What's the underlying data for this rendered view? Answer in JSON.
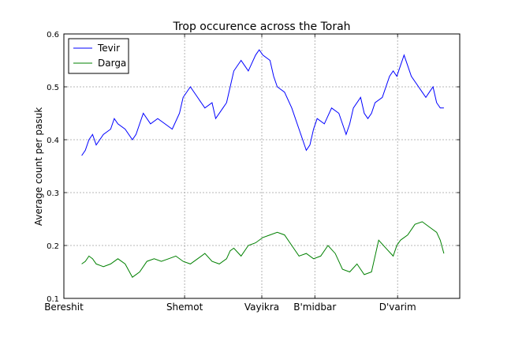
{
  "chart_data": {
    "type": "line",
    "title": "Trop occurence across the Torah",
    "xlabel": "",
    "ylabel": "Average count per pasuk",
    "ylim": [
      0.1,
      0.6
    ],
    "yticks": [
      "0.1",
      "0.2",
      "0.3",
      "0.4",
      "0.5",
      "0.6"
    ],
    "xlim": [
      0,
      1
    ],
    "xticks": [
      {
        "label": "Bereshit",
        "pos": 0.0
      },
      {
        "label": "Shemot",
        "pos": 0.305
      },
      {
        "label": "Vayikra",
        "pos": 0.5
      },
      {
        "label": "B'midbar",
        "pos": 0.634
      },
      {
        "label": "D'varim",
        "pos": 0.843
      }
    ],
    "grid": true,
    "legend_position": "top-left",
    "series": [
      {
        "name": "Tevir",
        "color": "#0000ff",
        "x": [
          0.0,
          0.01,
          0.02,
          0.03,
          0.04,
          0.06,
          0.08,
          0.09,
          0.1,
          0.12,
          0.14,
          0.15,
          0.16,
          0.17,
          0.19,
          0.21,
          0.23,
          0.25,
          0.27,
          0.28,
          0.3,
          0.32,
          0.34,
          0.36,
          0.37,
          0.39,
          0.4,
          0.41,
          0.42,
          0.44,
          0.45,
          0.46,
          0.48,
          0.49,
          0.5,
          0.52,
          0.53,
          0.54,
          0.56,
          0.58,
          0.6,
          0.61,
          0.62,
          0.63,
          0.64,
          0.65,
          0.67,
          0.69,
          0.71,
          0.72,
          0.73,
          0.74,
          0.75,
          0.77,
          0.78,
          0.79,
          0.8,
          0.81,
          0.83,
          0.85,
          0.86,
          0.87,
          0.88,
          0.89,
          0.9,
          0.91,
          0.93,
          0.94,
          0.95,
          0.96,
          0.97,
          0.98,
          0.99,
          1.0
        ],
        "y": [
          0.37,
          0.38,
          0.4,
          0.41,
          0.39,
          0.41,
          0.42,
          0.44,
          0.43,
          0.42,
          0.4,
          0.41,
          0.43,
          0.45,
          0.43,
          0.44,
          0.43,
          0.42,
          0.45,
          0.48,
          0.5,
          0.48,
          0.46,
          0.47,
          0.44,
          0.46,
          0.47,
          0.5,
          0.53,
          0.55,
          0.54,
          0.53,
          0.56,
          0.57,
          0.56,
          0.55,
          0.52,
          0.5,
          0.49,
          0.46,
          0.42,
          0.4,
          0.38,
          0.39,
          0.42,
          0.44,
          0.43,
          0.46,
          0.45,
          0.43,
          0.41,
          0.43,
          0.46,
          0.48,
          0.45,
          0.44,
          0.45,
          0.47,
          0.48,
          0.52,
          0.53,
          0.52,
          0.54,
          0.56,
          0.54,
          0.52,
          0.5,
          0.49,
          0.48,
          0.49,
          0.5,
          0.47,
          0.46,
          0.46
        ]
      },
      {
        "name": "Darga",
        "color": "#008000",
        "x": [
          0.0,
          0.01,
          0.02,
          0.03,
          0.04,
          0.06,
          0.08,
          0.1,
          0.12,
          0.14,
          0.16,
          0.18,
          0.2,
          0.22,
          0.24,
          0.26,
          0.28,
          0.3,
          0.32,
          0.34,
          0.36,
          0.38,
          0.4,
          0.41,
          0.42,
          0.44,
          0.46,
          0.48,
          0.5,
          0.52,
          0.54,
          0.56,
          0.58,
          0.6,
          0.62,
          0.64,
          0.66,
          0.68,
          0.7,
          0.72,
          0.74,
          0.76,
          0.78,
          0.8,
          0.82,
          0.84,
          0.86,
          0.87,
          0.88,
          0.9,
          0.92,
          0.94,
          0.96,
          0.98,
          0.99,
          1.0
        ],
        "y": [
          0.165,
          0.17,
          0.18,
          0.175,
          0.165,
          0.16,
          0.165,
          0.175,
          0.165,
          0.14,
          0.15,
          0.17,
          0.175,
          0.17,
          0.175,
          0.18,
          0.17,
          0.165,
          0.175,
          0.185,
          0.17,
          0.165,
          0.175,
          0.19,
          0.195,
          0.18,
          0.2,
          0.205,
          0.215,
          0.22,
          0.225,
          0.22,
          0.2,
          0.18,
          0.185,
          0.175,
          0.18,
          0.2,
          0.185,
          0.155,
          0.15,
          0.165,
          0.145,
          0.15,
          0.21,
          0.195,
          0.18,
          0.2,
          0.21,
          0.22,
          0.24,
          0.245,
          0.235,
          0.225,
          0.21,
          0.185
        ]
      }
    ]
  }
}
